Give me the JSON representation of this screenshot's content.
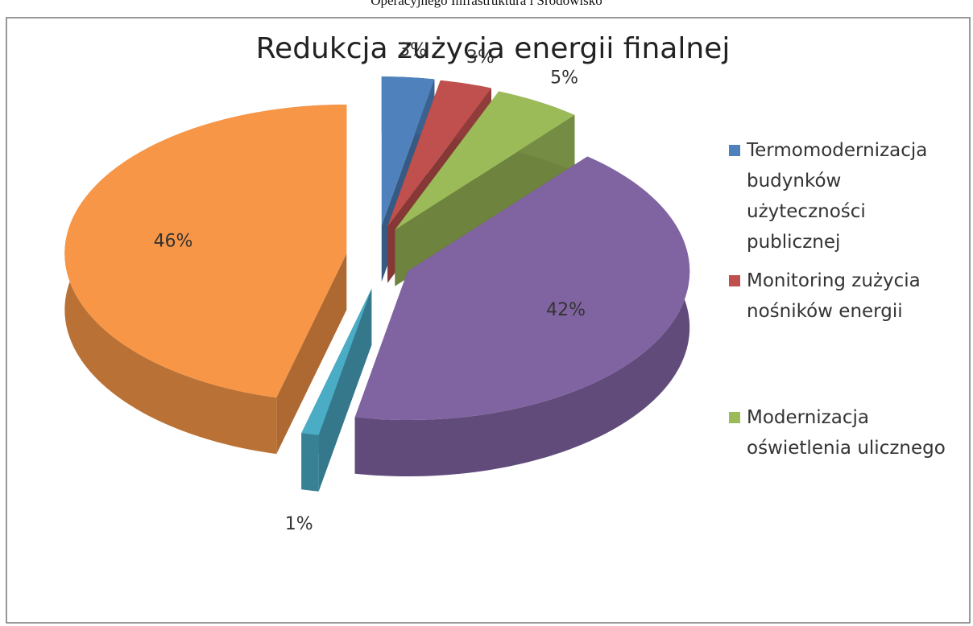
{
  "header": {
    "text": "Operacyjnego Infrastruktura i Środowisko"
  },
  "chart_data": {
    "type": "pie",
    "title": "Redukcja zużycia energii finalnej",
    "categories": [
      "Termomodernizacja budynków użyteczności publicznej",
      "Monitoring zużycia nośników energii",
      "Modernizacja oświetlenia ulicznego",
      null,
      null,
      null
    ],
    "values": [
      3,
      3,
      5,
      42,
      1,
      46
    ],
    "value_labels": [
      "3%",
      "3%",
      "5%",
      "42%",
      "1%",
      "46%"
    ],
    "colors": [
      "#4f81bd",
      "#c0504d",
      "#9bbb59",
      "#8064a2",
      "#4bacc6",
      "#f79646"
    ],
    "legend": "right"
  }
}
